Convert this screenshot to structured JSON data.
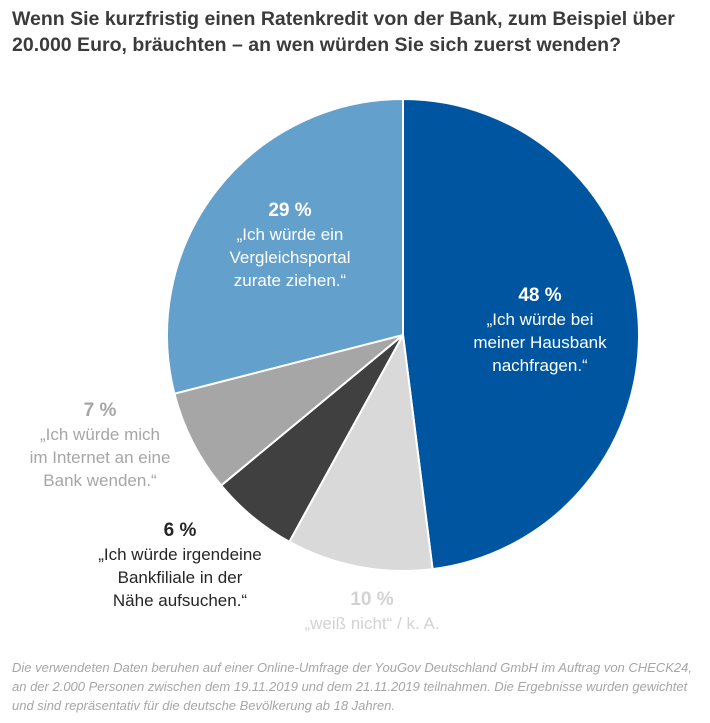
{
  "title": "Wenn Sie kurzfristig einen Ratenkredit von der Bank, zum Beispiel über 20.000 Euro, bräuchten – an wen würden Sie sich zuerst wenden?",
  "footnote": "Die verwendeten Daten beruhen auf einer Online-Umfrage der YouGov Deutschland GmbH im Auftrag von CHECK24, an der 2.000 Personen zwischen dem 19.11.2019 und dem 21.11.2019 teilnahmen. Die Ergebnisse wurden gewichtet und sind repräsentativ für die deutsche Bevölkerung ab 18 Jahren.",
  "chart_data": {
    "type": "pie",
    "start": "12 o'clock",
    "direction": "clockwise",
    "slices": [
      {
        "key": "hausbank",
        "value": 48,
        "label_pct": "48 %",
        "label": "„Ich würde bei\nmeiner Hausbank\nnachfragen.“",
        "color": "#0055a0"
      },
      {
        "key": "weiss",
        "value": 10,
        "label_pct": "10 %",
        "label": "„weiß nicht“ / k. A.",
        "color": "#d9d9d9"
      },
      {
        "key": "filiale",
        "value": 6,
        "label_pct": "6 %",
        "label": "„Ich würde irgendeine\nBankfiliale in der\nNähe aufsuchen.“",
        "color": "#404040"
      },
      {
        "key": "internet",
        "value": 7,
        "label_pct": "7 %",
        "label": "„Ich würde mich\nim Internet an eine\nBank wenden.“",
        "color": "#a6a6a6"
      },
      {
        "key": "vergleich",
        "value": 29,
        "label_pct": "29 %",
        "label": "„Ich würde ein\nVergleichsportal\nzurate ziehen.“",
        "color": "#64a0cc"
      }
    ]
  }
}
